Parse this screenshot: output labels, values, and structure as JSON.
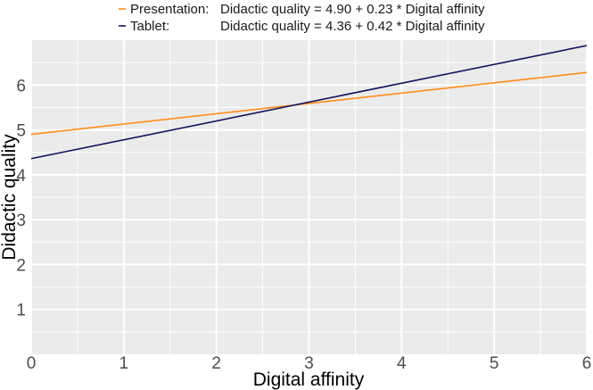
{
  "chart_data": {
    "type": "line",
    "xlabel": "Digital affinity",
    "ylabel": "Didactic quality",
    "xlim": [
      0,
      6
    ],
    "ylim": [
      0,
      7
    ],
    "x_ticks": [
      0,
      1,
      2,
      3,
      4,
      5,
      6
    ],
    "y_ticks": [
      1,
      2,
      3,
      4,
      5,
      6
    ],
    "grid": true,
    "legend_position": "top",
    "series": [
      {
        "name": "Presentation:",
        "equation": "Didactic quality = 4.90 + 0.23 * Digital affinity",
        "intercept": 4.9,
        "slope": 0.23,
        "color": "#ff8c1a",
        "x": [
          0,
          6
        ],
        "y": [
          4.9,
          6.28
        ]
      },
      {
        "name": "Tablet:",
        "equation": "Didactic quality = 4.36 + 0.42 * Digital affinity",
        "intercept": 4.36,
        "slope": 0.42,
        "color": "#14145a",
        "x": [
          0,
          6
        ],
        "y": [
          4.36,
          6.88
        ]
      }
    ],
    "panel_color": "#ebebeb",
    "grid_color": "#ffffff"
  }
}
